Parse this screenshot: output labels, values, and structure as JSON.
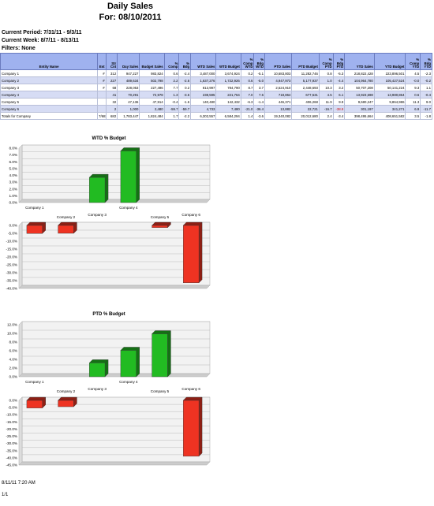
{
  "header": {
    "title": "Daily Sales",
    "subtitle": "For: 08/10/2011",
    "current_period": "Current Period: 7/31/11 - 9/3/11",
    "current_week": "Current Week: 8/7/11 - 8/13/11",
    "filters": "Filters: None"
  },
  "table": {
    "columns": [
      "Entity Name",
      "Est",
      "Str Cnt",
      "Day Sales",
      "Budget Sales",
      "% Comp",
      "% Bdg",
      "WTD Sales",
      "WTD Budget",
      "% Comp WTD",
      "% Bdg WTD",
      "PTD Sales",
      "PTD Budget",
      "% Comp PTD",
      "% Bdg PTD",
      "YTD Sales",
      "YTD Budget",
      "% Comp YTD",
      "% Bdg YTD"
    ],
    "rows": [
      [
        "Company 1",
        "#",
        "312",
        "947,227",
        "983,824",
        "0.6",
        "-2.4",
        "3,487,000",
        "3,674,924",
        "0.2",
        "-5.1",
        "10,683,803",
        "11,282,746",
        "0.8",
        "-5.3",
        "218,822,428",
        "223,896,501",
        "4.5",
        "-2.3"
      ],
      [
        "Company 2",
        "#",
        "227",
        "489,634",
        "502,798",
        "2.2",
        "-2.6",
        "1,637,276",
        "1,722,926",
        "0.6",
        "-5.0",
        "4,947,973",
        "5,177,937",
        "1.0",
        "-4.4",
        "104,964,780",
        "105,427,524",
        "-0.0",
        "-0.2"
      ],
      [
        "Company 3",
        "#",
        "68",
        "228,053",
        "227,496",
        "7.7",
        "0.2",
        "813,997",
        "784,790",
        "8.7",
        "3.7",
        "2,524,910",
        "2,448,693",
        "10.3",
        "3.2",
        "50,707,208",
        "50,141,224",
        "9.3",
        "1.1"
      ],
      [
        "Company 4",
        "",
        "41",
        "70,291",
        "72,978",
        "1.3",
        "-3.6",
        "238,595",
        "221,764",
        "7.0",
        "7.6",
        "718,864",
        "677,531",
        "4.5",
        "6.1",
        "13,923,698",
        "13,980,864",
        "0.6",
        "-0.4"
      ],
      [
        "Company 5",
        "",
        "32",
        "47,136",
        "47,914",
        "-0.4",
        "-1.6",
        "140,480",
        "142,432",
        "-6.3",
        "-1.4",
        "446,371",
        "406,268",
        "11.9",
        "9.9",
        "9,680,247",
        "9,864,986",
        "11.3",
        "9.0"
      ],
      [
        "Company 6",
        "",
        "2",
        "1,000",
        "2,480",
        "-59.7",
        "-59.7",
        "4,733",
        "7,480",
        "-21.0",
        "-36.4",
        "13,882",
        "22,721",
        "-16.7",
        "-38.9",
        "301,197",
        "341,271",
        "6.9",
        "-11.7"
      ]
    ],
    "total": [
      "Totals for Company",
      "7/682",
      "682",
      "1,783,447",
      "1,824,484",
      "1.7",
      "-2.2",
      "6,302,557",
      "6,584,294",
      "1.4",
      "-3.6",
      "19,340,082",
      "20,012,680",
      "2.4",
      "-3.4",
      "398,495,664",
      "408,651,582",
      "3.5",
      "-1.8"
    ]
  },
  "chart_data": [
    {
      "type": "bar",
      "title": "WTD % Budget",
      "categories": [
        "Company 1",
        "Company 2",
        "Company 3",
        "Company 4",
        "Company 5",
        "Company 6"
      ],
      "values": [
        -5.1,
        -5.0,
        3.7,
        7.6,
        -1.4,
        -36.4
      ],
      "upper_ylim": [
        0,
        8
      ],
      "upper_ticks": [
        "8.0%",
        "7.0%",
        "6.0%",
        "5.0%",
        "4.0%",
        "3.0%",
        "2.0%",
        "1.0%",
        "0.0%"
      ],
      "lower_ylim": [
        -40,
        0
      ],
      "lower_ticks": [
        "0.0%",
        "-5.0%",
        "-10.0%",
        "-15.0%",
        "-20.0%",
        "-25.0%",
        "-30.0%",
        "-35.0%",
        "-40.0%"
      ],
      "grid": true,
      "colors": {
        "positive": "#22bb22",
        "negative": "#ee3322"
      }
    },
    {
      "type": "bar",
      "title": "PTD % Budget",
      "categories": [
        "Company 1",
        "Company 2",
        "Company 3",
        "Company 4",
        "Company 5",
        "Company 6"
      ],
      "values": [
        -5.3,
        -4.4,
        3.2,
        6.1,
        9.9,
        -38.9
      ],
      "upper_ylim": [
        0,
        12
      ],
      "upper_ticks": [
        "12.0%",
        "10.0%",
        "8.0%",
        "6.0%",
        "4.0%",
        "2.0%",
        "0.0%"
      ],
      "lower_ylim": [
        -45,
        0
      ],
      "lower_ticks": [
        "0.0%",
        "-5.0%",
        "-10.0%",
        "-15.0%",
        "-20.0%",
        "-25.0%",
        "-30.0%",
        "-35.0%",
        "-40.0%",
        "-45.0%"
      ],
      "grid": true,
      "colors": {
        "positive": "#22bb22",
        "negative": "#ee3322"
      }
    }
  ],
  "footer": {
    "timestamp": "8/11/11 7:20 AM",
    "page": "1/1"
  }
}
